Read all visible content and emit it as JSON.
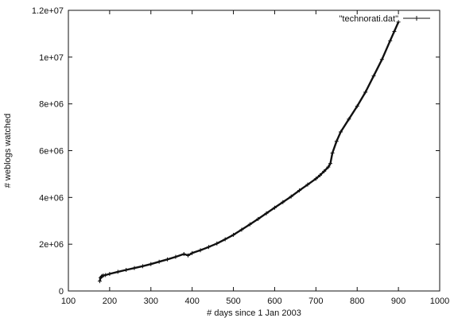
{
  "chart_data": {
    "type": "line",
    "title": "",
    "xlabel": "# days since 1 Jan 2003",
    "ylabel": "# weblogs watched",
    "xlim": [
      100,
      1000
    ],
    "ylim": [
      0,
      12000000
    ],
    "xticks": [
      100,
      200,
      300,
      400,
      500,
      600,
      700,
      800,
      900,
      1000
    ],
    "xtick_labels": [
      "100",
      "200",
      "300",
      "400",
      "500",
      "600",
      "700",
      "800",
      "900",
      "1000"
    ],
    "yticks": [
      0,
      2000000,
      4000000,
      6000000,
      8000000,
      10000000,
      12000000
    ],
    "ytick_labels": [
      "0",
      "2e+06",
      "4e+06",
      "6e+06",
      "8e+06",
      "1e+07",
      "1.2e+07"
    ],
    "grid": false,
    "legend_position": "top-right",
    "marker": "plus",
    "line_color": "#111111",
    "series": [
      {
        "name": "\"technorati.dat\"",
        "x": [
          176,
          178,
          180,
          182,
          185,
          190,
          200,
          220,
          240,
          260,
          280,
          300,
          320,
          340,
          360,
          380,
          390,
          400,
          420,
          440,
          460,
          480,
          500,
          520,
          540,
          560,
          580,
          600,
          620,
          640,
          660,
          680,
          700,
          710,
          720,
          730,
          735,
          740,
          750,
          760,
          780,
          800,
          820,
          840,
          860,
          880,
          890,
          900
        ],
        "y": [
          420000,
          560000,
          610000,
          640000,
          660000,
          680000,
          730000,
          820000,
          900000,
          980000,
          1060000,
          1150000,
          1250000,
          1350000,
          1460000,
          1580000,
          1520000,
          1620000,
          1740000,
          1880000,
          2030000,
          2210000,
          2400000,
          2620000,
          2850000,
          3080000,
          3320000,
          3560000,
          3800000,
          4040000,
          4300000,
          4550000,
          4800000,
          4950000,
          5120000,
          5300000,
          5450000,
          5900000,
          6400000,
          6800000,
          7350000,
          7900000,
          8500000,
          9200000,
          9900000,
          10700000,
          11100000,
          11500000
        ]
      }
    ]
  }
}
